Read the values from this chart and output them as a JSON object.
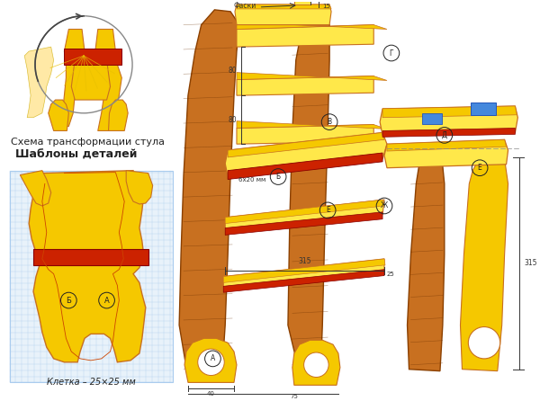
{
  "background_color": "#ffffff",
  "figsize": [
    6.0,
    4.46
  ],
  "dpi": 100,
  "yellow": "#F5C800",
  "light_yellow": "#FFE84A",
  "orange_brown": "#C87020",
  "dark_brown": "#8B4000",
  "red": "#CC2200",
  "grid_blue": "#AACCEE",
  "line_color": "#222222",
  "text1": "Схема трансформации стула",
  "text2": "Шаблоны деталей",
  "text3": "Клетка – 25×25 мм"
}
